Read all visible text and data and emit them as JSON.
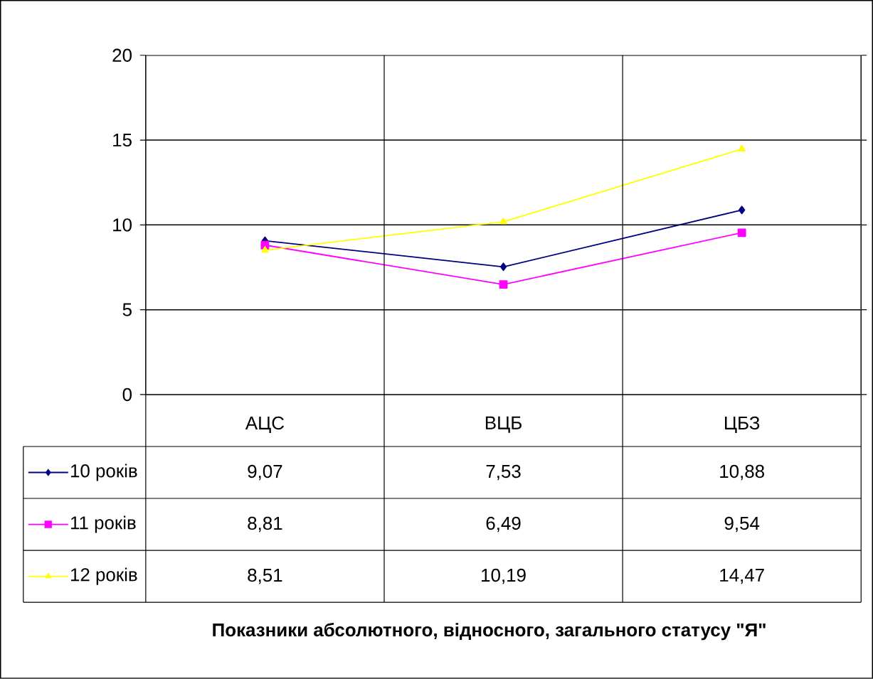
{
  "chart_data": {
    "type": "line",
    "annotations": [
      "Показники абсолютного, відносного, загального статусу \"Я\""
    ],
    "categories": [
      "АЦС",
      "ВЦБ",
      "ЦБЗ"
    ],
    "series": [
      {
        "name": "10 років",
        "color": "#000080",
        "marker": "diamond",
        "values": [
          9.07,
          7.53,
          10.88
        ],
        "value_labels": [
          "9,07",
          "7,53",
          "10,88"
        ]
      },
      {
        "name": "11 років",
        "color": "#ff00ff",
        "marker": "square",
        "values": [
          8.81,
          6.49,
          9.54
        ],
        "value_labels": [
          "8,81",
          "6,49",
          "9,54"
        ]
      },
      {
        "name": "12 років",
        "color": "#ffff00",
        "marker": "triangle",
        "values": [
          8.51,
          10.19,
          14.47
        ],
        "value_labels": [
          "8,51",
          "10,19",
          "14,47"
        ]
      }
    ],
    "ylim": [
      0,
      20
    ],
    "yticks": [
      0,
      5,
      10,
      15,
      20
    ],
    "grid": "y",
    "legend": "bottom"
  }
}
